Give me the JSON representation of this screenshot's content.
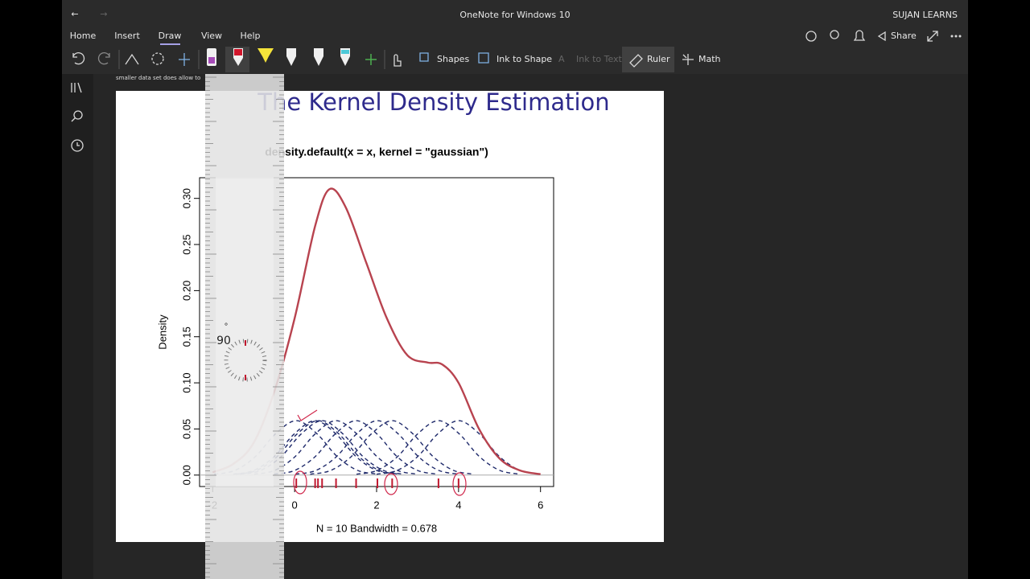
{
  "window": {
    "back": "←",
    "forward": "→",
    "title": "OneNote for Windows 10",
    "user": "SUJAN LEARNS"
  },
  "tabs": [
    "Home",
    "Insert",
    "Draw",
    "View",
    "Help"
  ],
  "toolbar": {
    "share": "Share",
    "shapes": "Shapes",
    "ink_to_shape": "Ink to Shape",
    "ink_to_text": "Ink to Text",
    "ruler": "Ruler",
    "math": "Math"
  },
  "note_text": "smaller data set does allow to",
  "slide_title": "The Kernel Density Estimation",
  "ruler": {
    "angle": "90",
    "degree": "°"
  },
  "chart_data": {
    "type": "line",
    "title": "density.default(x = x, kernel = \"gaussian\")",
    "ylabel": "Density",
    "xlabel": "N = 10   Bandwidth = 0.678",
    "xlim": [
      -2.32,
      6.32
    ],
    "ylim": [
      -0.0124,
      0.3224
    ],
    "xticks": [
      -2,
      0,
      2,
      4,
      6
    ],
    "yticks": [
      {
        "value": 0,
        "label": "0.00"
      },
      {
        "value": 0.05,
        "label": "0.05"
      },
      {
        "value": 0.1,
        "label": "0.10"
      },
      {
        "value": 0.15,
        "label": "0.15"
      },
      {
        "value": 0.2,
        "label": "0.20"
      },
      {
        "value": 0.25,
        "label": "0.25"
      },
      {
        "value": 0.3,
        "label": "0.30"
      }
    ],
    "rug": [
      0.04,
      0.5,
      0.57,
      0.67,
      1.01,
      1.5,
      2.02,
      2.38,
      3.51,
      4.0
    ],
    "rug_color": "#c0182f",
    "series": [
      {
        "color": "#b8434f",
        "dash": false,
        "x": [
          -2,
          -1.5,
          -1,
          -0.5,
          0,
          0.5,
          0.85,
          1.25,
          1.75,
          2.25,
          2.75,
          3.25,
          3.6,
          4,
          4.5,
          5,
          5.5,
          6
        ],
        "values": [
          0.003,
          0.012,
          0.035,
          0.09,
          0.17,
          0.27,
          0.31,
          0.29,
          0.23,
          0.17,
          0.13,
          0.122,
          0.12,
          0.1,
          0.05,
          0.018,
          0.005,
          0.001
        ]
      },
      {
        "color": "#1f2a6b",
        "dash": true,
        "x": [
          -1.96,
          -1.46,
          -0.96,
          -0.46,
          0.04,
          0.54,
          1.04,
          1.54,
          2.04
        ],
        "values": [
          0.001,
          0.005,
          0.02,
          0.045,
          0.059,
          0.045,
          0.02,
          0.005,
          0.001
        ]
      },
      {
        "color": "#1f2a6b",
        "dash": true,
        "x": [
          -1.5,
          -1,
          -0.5,
          0,
          0.5,
          1,
          1.5,
          2,
          2.5
        ],
        "values": [
          0.001,
          0.005,
          0.02,
          0.045,
          0.059,
          0.045,
          0.02,
          0.005,
          0.001
        ]
      },
      {
        "color": "#1f2a6b",
        "dash": true,
        "x": [
          -1.43,
          -0.93,
          -0.43,
          0.07,
          0.57,
          1.07,
          1.57,
          2.07,
          2.57
        ],
        "values": [
          0.001,
          0.005,
          0.02,
          0.045,
          0.059,
          0.045,
          0.02,
          0.005,
          0.001
        ]
      },
      {
        "color": "#1f2a6b",
        "dash": true,
        "x": [
          -1.33,
          -0.83,
          -0.33,
          0.17,
          0.67,
          1.17,
          1.67,
          2.17,
          2.67
        ],
        "values": [
          0.001,
          0.005,
          0.02,
          0.045,
          0.059,
          0.045,
          0.02,
          0.005,
          0.001
        ]
      },
      {
        "color": "#1f2a6b",
        "dash": true,
        "x": [
          -0.99,
          -0.49,
          0.01,
          0.51,
          1.01,
          1.51,
          2.01,
          2.51,
          3.01
        ],
        "values": [
          0.001,
          0.005,
          0.02,
          0.045,
          0.059,
          0.045,
          0.02,
          0.005,
          0.001
        ]
      },
      {
        "color": "#1f2a6b",
        "dash": true,
        "x": [
          -0.5,
          0,
          0.5,
          1,
          1.5,
          2,
          2.5,
          3,
          3.5
        ],
        "values": [
          0.001,
          0.005,
          0.02,
          0.045,
          0.059,
          0.045,
          0.02,
          0.005,
          0.001
        ]
      },
      {
        "color": "#1f2a6b",
        "dash": true,
        "x": [
          0.02,
          0.52,
          1.02,
          1.52,
          2.02,
          2.52,
          3.02,
          3.52,
          4.02
        ],
        "values": [
          0.001,
          0.005,
          0.02,
          0.045,
          0.059,
          0.045,
          0.02,
          0.005,
          0.001
        ]
      },
      {
        "color": "#1f2a6b",
        "dash": true,
        "x": [
          0.38,
          0.88,
          1.38,
          1.88,
          2.38,
          2.88,
          3.38,
          3.88,
          4.38
        ],
        "values": [
          0.001,
          0.005,
          0.02,
          0.045,
          0.059,
          0.045,
          0.02,
          0.005,
          0.001
        ]
      },
      {
        "color": "#1f2a6b",
        "dash": true,
        "x": [
          1.51,
          2.01,
          2.51,
          3.01,
          3.51,
          4.01,
          4.51,
          5.01,
          5.51
        ],
        "values": [
          0.001,
          0.005,
          0.02,
          0.045,
          0.059,
          0.045,
          0.02,
          0.005,
          0.001
        ]
      },
      {
        "color": "#1f2a6b",
        "dash": true,
        "x": [
          2,
          2.5,
          3,
          3.5,
          4,
          4.5,
          5,
          5.5,
          6
        ],
        "values": [
          0.001,
          0.005,
          0.02,
          0.045,
          0.059,
          0.045,
          0.02,
          0.005,
          0.001
        ]
      }
    ]
  }
}
